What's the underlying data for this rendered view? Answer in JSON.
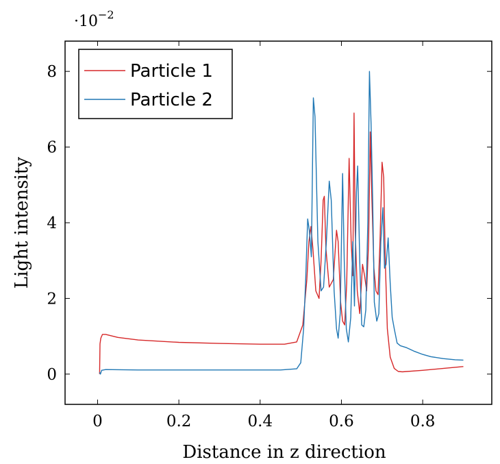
{
  "chart_data": {
    "type": "line",
    "title": "",
    "xlabel": "Distance in z direction",
    "ylabel": "Light intensity",
    "xlim": [
      -0.08,
      0.97
    ],
    "ylim": [
      -0.8,
      8.8
    ],
    "y_scale_factor": "·10",
    "y_scale_exponent": "−2",
    "x_ticks": [
      0,
      0.2,
      0.4,
      0.6,
      0.8
    ],
    "x_tick_labels": [
      "0",
      "0.2",
      "0.4",
      "0.6",
      "0.8"
    ],
    "y_ticks": [
      0,
      2,
      4,
      6,
      8
    ],
    "y_tick_labels": [
      "0",
      "2",
      "4",
      "6",
      "8"
    ],
    "grid": false,
    "legend_position": "top-left",
    "series": [
      {
        "name": "Particle 1",
        "color": "#d62728",
        "points": [
          [
            0.005,
            0
          ],
          [
            0.006,
            0.8
          ],
          [
            0.008,
            0.95
          ],
          [
            0.012,
            1.05
          ],
          [
            0.02,
            1.05
          ],
          [
            0.05,
            0.97
          ],
          [
            0.1,
            0.9
          ],
          [
            0.2,
            0.84
          ],
          [
            0.3,
            0.81
          ],
          [
            0.4,
            0.79
          ],
          [
            0.46,
            0.79
          ],
          [
            0.49,
            0.85
          ],
          [
            0.505,
            1.3
          ],
          [
            0.515,
            2.5
          ],
          [
            0.52,
            3.5
          ],
          [
            0.525,
            3.9
          ],
          [
            0.53,
            3.3
          ],
          [
            0.537,
            2.2
          ],
          [
            0.545,
            2.0
          ],
          [
            0.55,
            3.0
          ],
          [
            0.555,
            4.6
          ],
          [
            0.558,
            4.7
          ],
          [
            0.562,
            3.3
          ],
          [
            0.57,
            2.3
          ],
          [
            0.58,
            2.5
          ],
          [
            0.588,
            3.8
          ],
          [
            0.592,
            3.5
          ],
          [
            0.598,
            1.9
          ],
          [
            0.603,
            1.4
          ],
          [
            0.608,
            1.3
          ],
          [
            0.613,
            2.4
          ],
          [
            0.619,
            5.7
          ],
          [
            0.624,
            3.5
          ],
          [
            0.628,
            2.6
          ],
          [
            0.631,
            6.9
          ],
          [
            0.634,
            3.8
          ],
          [
            0.639,
            2.2
          ],
          [
            0.645,
            1.6
          ],
          [
            0.652,
            2.9
          ],
          [
            0.657,
            2.6
          ],
          [
            0.662,
            2.2
          ],
          [
            0.667,
            3.5
          ],
          [
            0.671,
            6.4
          ],
          [
            0.675,
            4.6
          ],
          [
            0.68,
            2.8
          ],
          [
            0.685,
            2.2
          ],
          [
            0.69,
            2.1
          ],
          [
            0.695,
            3.5
          ],
          [
            0.7,
            5.6
          ],
          [
            0.704,
            5.2
          ],
          [
            0.708,
            3.0
          ],
          [
            0.713,
            1.2
          ],
          [
            0.72,
            0.45
          ],
          [
            0.73,
            0.15
          ],
          [
            0.74,
            0.07
          ],
          [
            0.75,
            0.06
          ],
          [
            0.8,
            0.1
          ],
          [
            0.85,
            0.15
          ],
          [
            0.9,
            0.2
          ]
        ]
      },
      {
        "name": "Particle 2",
        "color": "#1f77b4",
        "points": [
          [
            0.005,
            0.05
          ],
          [
            0.007,
            0.0
          ],
          [
            0.01,
            0.1
          ],
          [
            0.02,
            0.12
          ],
          [
            0.1,
            0.11
          ],
          [
            0.3,
            0.11
          ],
          [
            0.45,
            0.11
          ],
          [
            0.49,
            0.14
          ],
          [
            0.5,
            0.3
          ],
          [
            0.507,
            1.2
          ],
          [
            0.512,
            2.5
          ],
          [
            0.517,
            4.1
          ],
          [
            0.521,
            3.8
          ],
          [
            0.526,
            3.1
          ],
          [
            0.531,
            7.3
          ],
          [
            0.535,
            6.8
          ],
          [
            0.542,
            3.5
          ],
          [
            0.55,
            2.2
          ],
          [
            0.556,
            2.3
          ],
          [
            0.563,
            3.5
          ],
          [
            0.57,
            5.1
          ],
          [
            0.575,
            4.6
          ],
          [
            0.582,
            2.2
          ],
          [
            0.588,
            1.2
          ],
          [
            0.592,
            0.95
          ],
          [
            0.597,
            1.6
          ],
          [
            0.603,
            5.3
          ],
          [
            0.607,
            3.0
          ],
          [
            0.612,
            1.2
          ],
          [
            0.617,
            0.85
          ],
          [
            0.623,
            1.5
          ],
          [
            0.628,
            3.5
          ],
          [
            0.632,
            1.8
          ],
          [
            0.637,
            4.8
          ],
          [
            0.64,
            5.5
          ],
          [
            0.645,
            3.0
          ],
          [
            0.65,
            1.3
          ],
          [
            0.655,
            1.25
          ],
          [
            0.66,
            1.7
          ],
          [
            0.665,
            4.0
          ],
          [
            0.669,
            8.0
          ],
          [
            0.673,
            6.6
          ],
          [
            0.677,
            4.5
          ],
          [
            0.681,
            1.9
          ],
          [
            0.687,
            1.4
          ],
          [
            0.692,
            1.6
          ],
          [
            0.697,
            3.5
          ],
          [
            0.702,
            4.4
          ],
          [
            0.706,
            2.8
          ],
          [
            0.71,
            2.9
          ],
          [
            0.715,
            3.6
          ],
          [
            0.72,
            2.4
          ],
          [
            0.725,
            1.5
          ],
          [
            0.73,
            1.2
          ],
          [
            0.737,
            0.82
          ],
          [
            0.745,
            0.75
          ],
          [
            0.76,
            0.7
          ],
          [
            0.78,
            0.6
          ],
          [
            0.8,
            0.52
          ],
          [
            0.82,
            0.46
          ],
          [
            0.85,
            0.41
          ],
          [
            0.88,
            0.38
          ],
          [
            0.9,
            0.37
          ]
        ]
      }
    ]
  }
}
